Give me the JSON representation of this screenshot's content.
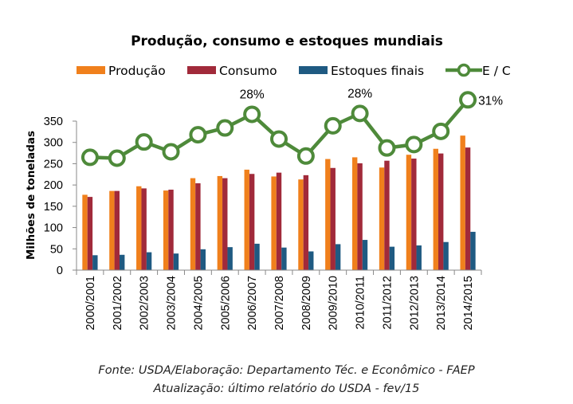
{
  "chart_data": {
    "type": "bar",
    "title": "Produção, consumo e estoques mundiais",
    "ylabel": "Milhões de toneladas",
    "xlabel": "",
    "ylim": [
      0,
      350
    ],
    "yticks": [
      0,
      50,
      100,
      150,
      200,
      250,
      300,
      350
    ],
    "legend_position": "top",
    "categories": [
      "2000/2001",
      "2001/2002",
      "2002/2003",
      "2003/2004",
      "2004/2005",
      "2005/2006",
      "2006/2007",
      "2007/2008",
      "2008/2009",
      "2009/2010",
      "2010/2011",
      "2011/2012",
      "2012/2013",
      "2013/2014",
      "2014/2015"
    ],
    "series": [
      {
        "name": "Produção",
        "type": "bar",
        "color": "#F0801C",
        "values": [
          177,
          186,
          197,
          187,
          216,
          221,
          236,
          220,
          213,
          261,
          265,
          241,
          271,
          285,
          316
        ]
      },
      {
        "name": "Consumo",
        "type": "bar",
        "color": "#A12A3A",
        "values": [
          172,
          186,
          192,
          189,
          204,
          216,
          226,
          229,
          223,
          240,
          251,
          257,
          262,
          274,
          288
        ]
      },
      {
        "name": "Estoques finais",
        "type": "bar",
        "color": "#1F5A82",
        "values": [
          35,
          36,
          42,
          39,
          49,
          54,
          62,
          53,
          44,
          61,
          71,
          55,
          58,
          66,
          90
        ]
      },
      {
        "name": "E / C",
        "type": "line",
        "color": "#4E8A3A",
        "values_plot_scale": [
          265,
          263,
          301,
          278,
          318,
          334,
          366,
          308,
          268,
          339,
          368,
          287,
          295,
          326,
          400
        ]
      }
    ],
    "annotations": [
      {
        "category": "2006/2007",
        "text": "28%"
      },
      {
        "category": "2010/2011",
        "text": "28%"
      },
      {
        "category": "2014/2015",
        "text": "31%"
      }
    ]
  },
  "source": {
    "line1": "Fonte: USDA/Elaboração: Departamento Téc. e Econômico - FAEP",
    "line2": "Atualização: último relatório do USDA - fev/15"
  }
}
